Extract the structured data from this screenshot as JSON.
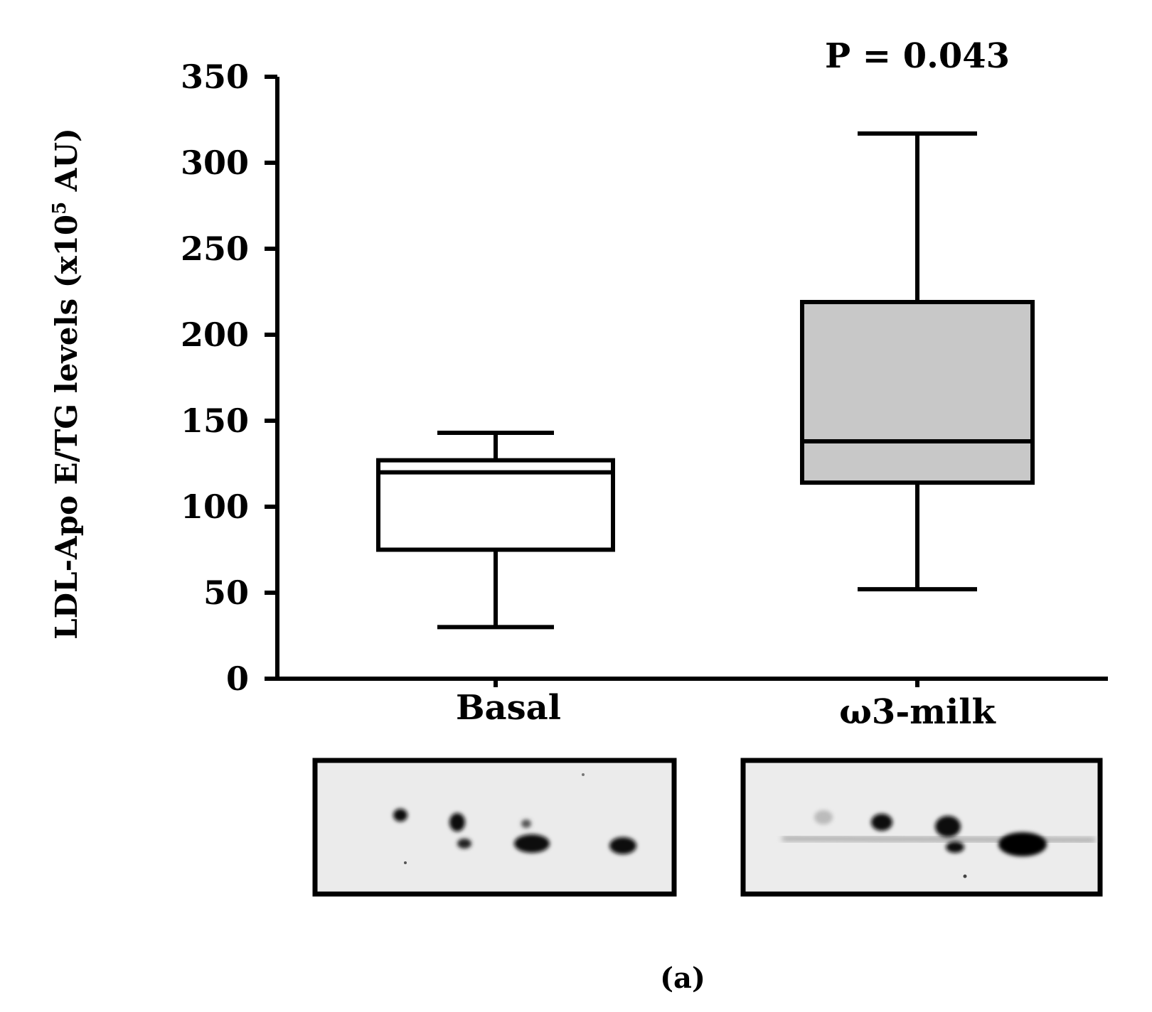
{
  "chart_data": {
    "type": "box",
    "ylabel": "LDL-Apo E/TG levels (x10⁵ AU)",
    "ylabel_main": "LDL-Apo E/TG levels (x10",
    "ylabel_sup": "5",
    "ylabel_tail": " AU)",
    "ylim": [
      0,
      350
    ],
    "yticks": [
      "0",
      "50",
      "100",
      "150",
      "200",
      "250",
      "300",
      "350"
    ],
    "categories": [
      "Basal",
      "ω3-milk"
    ],
    "series": [
      {
        "category": "Basal",
        "min": 30,
        "q1": 75,
        "median": 120,
        "q3": 127,
        "max": 143,
        "fill": "#ffffff"
      },
      {
        "category": "ω3-milk",
        "min": 52,
        "q1": 114,
        "median": 138,
        "q3": 219,
        "max": 317,
        "fill": "#c8c8c8"
      }
    ],
    "annotation": "P = 0.043",
    "panel_label": "(a)",
    "grid": false,
    "legend": "none"
  },
  "blots": [
    {
      "name": "blot-basal",
      "category": "Basal"
    },
    {
      "name": "blot-omega3-milk",
      "category": "ω3-milk"
    }
  ]
}
